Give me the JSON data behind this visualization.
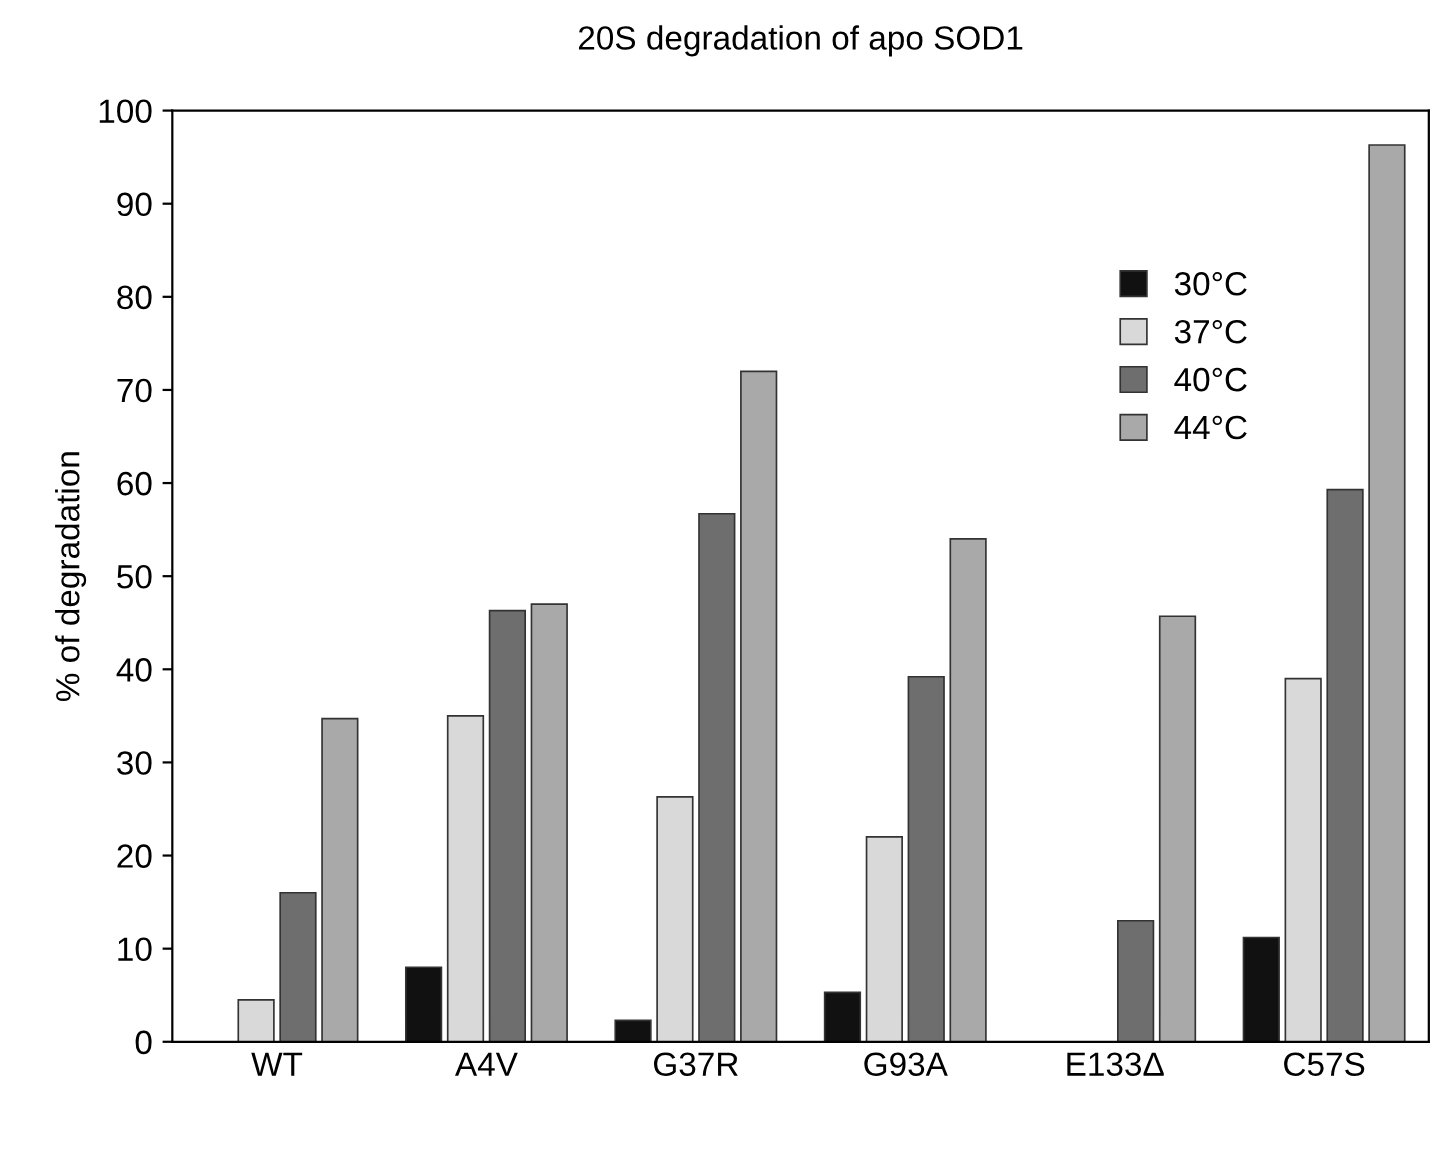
{
  "chart_data": {
    "type": "bar",
    "title": "20S degradation of apo SOD1",
    "ylabel": "% of degradation",
    "categories": [
      "WT",
      "A4V",
      "G37R",
      "G93A",
      "E133Δ",
      "C57S"
    ],
    "series": [
      {
        "name": "30°C",
        "color": "#111111",
        "values": [
          null,
          8,
          2.3,
          5.3,
          null,
          11.2
        ]
      },
      {
        "name": "37°C",
        "color": "#d9d9d9",
        "values": [
          4.5,
          35,
          26.3,
          22,
          null,
          39
        ]
      },
      {
        "name": "40°C",
        "color": "#6e6e6e",
        "values": [
          16,
          46.3,
          56.7,
          39.2,
          13,
          59.3
        ]
      },
      {
        "name": "44°C",
        "color": "#a9a9a9",
        "values": [
          34.7,
          47,
          72,
          54,
          45.7,
          96.3
        ]
      }
    ],
    "ylim": [
      0,
      100
    ],
    "yticks": [
      0,
      10,
      20,
      30,
      40,
      50,
      60,
      70,
      80,
      90,
      100
    ],
    "grid": false,
    "legend": "top right"
  }
}
